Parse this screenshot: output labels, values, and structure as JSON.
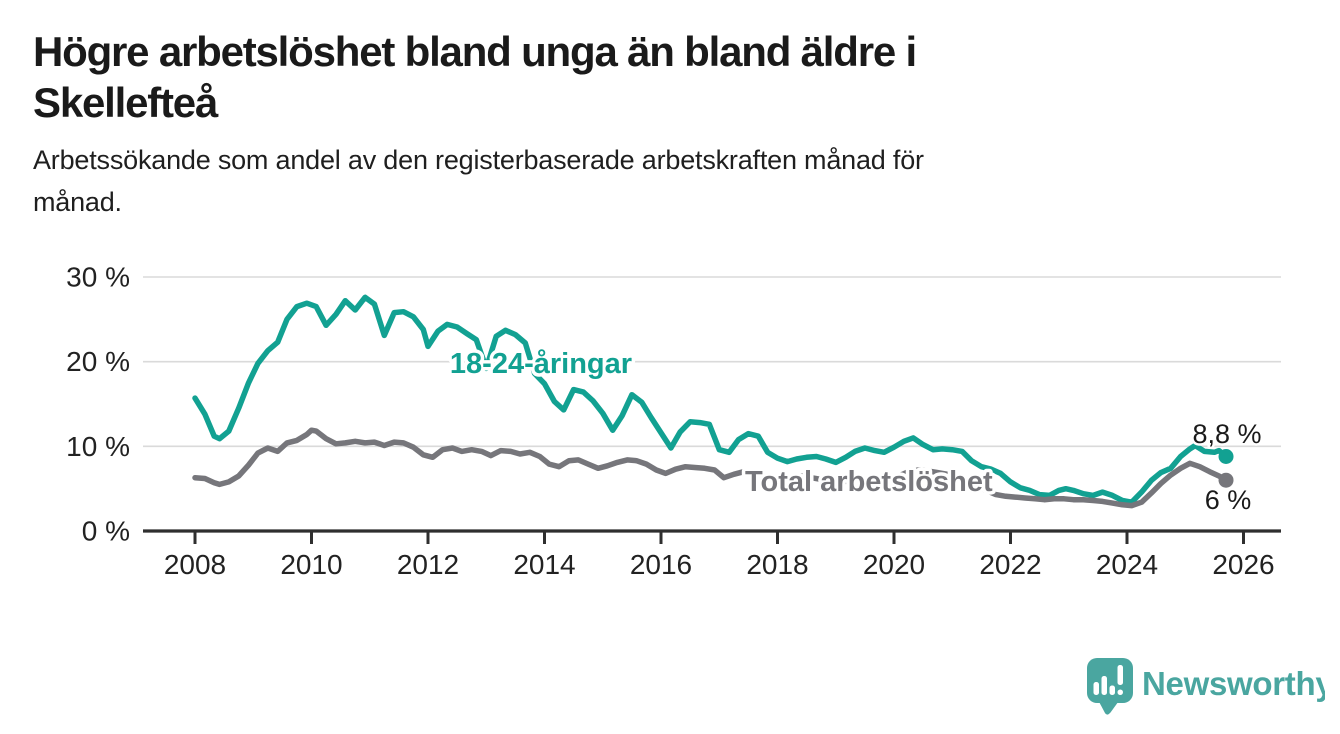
{
  "header": {
    "title_line1": "Högre arbetslöshet bland unga än bland äldre i",
    "title_line2": "Skellefteå",
    "subtitle_line1": "Arbetssökande som andel av den registerbaserade arbetskraften månad för",
    "subtitle_line2": "månad."
  },
  "footer": {
    "brand": "Newsworthy",
    "brand_color": "#4aa6a0",
    "logo_icon": "speech-bubble-bar-chart-icon"
  },
  "chart_data": {
    "type": "line",
    "title": "Högre arbetslöshet bland unga än bland äldre i Skellefteå",
    "subtitle": "Arbetssökande som andel av den registerbaserade arbetskraften månad för månad.",
    "unit": "%",
    "grid": "horizontal",
    "legend": "inline-labels",
    "colors": {
      "young": "#12a192",
      "total": "#76767b",
      "gridline": "#dadada",
      "axis": "#2f2f2f",
      "value_label": "#1a1a1a"
    },
    "x_axis": {
      "tick_labels": [
        "2008",
        "2010",
        "2012",
        "2014",
        "2016",
        "2018",
        "2020",
        "2022",
        "2024",
        "2026"
      ],
      "tick_years": [
        2008,
        2010,
        2012,
        2014,
        2016,
        2018,
        2020,
        2022,
        2024,
        2026
      ],
      "range": [
        2007.1,
        2026.65
      ]
    },
    "y_axis": {
      "tick_values": [
        0,
        10,
        20,
        30
      ],
      "tick_labels": [
        "0 %",
        "10 %",
        "20 %",
        "30 %"
      ],
      "range": [
        0,
        31.5
      ]
    },
    "series": [
      {
        "name": "18-24-åringar",
        "color": "#12a192",
        "end_label": "8,8 %",
        "end_value": 8.8,
        "points": [
          [
            2008.0,
            15.7
          ],
          [
            2008.17,
            13.8
          ],
          [
            2008.33,
            11.2
          ],
          [
            2008.42,
            10.9
          ],
          [
            2008.58,
            11.8
          ],
          [
            2008.75,
            14.5
          ],
          [
            2008.92,
            17.5
          ],
          [
            2009.08,
            19.8
          ],
          [
            2009.25,
            21.3
          ],
          [
            2009.42,
            22.3
          ],
          [
            2009.58,
            25.0
          ],
          [
            2009.75,
            26.5
          ],
          [
            2009.92,
            26.9
          ],
          [
            2010.08,
            26.5
          ],
          [
            2010.25,
            24.3
          ],
          [
            2010.42,
            25.6
          ],
          [
            2010.58,
            27.2
          ],
          [
            2010.75,
            26.1
          ],
          [
            2010.92,
            27.6
          ],
          [
            2011.08,
            26.8
          ],
          [
            2011.25,
            23.1
          ],
          [
            2011.42,
            25.8
          ],
          [
            2011.58,
            25.9
          ],
          [
            2011.75,
            25.3
          ],
          [
            2011.92,
            23.8
          ],
          [
            2012.0,
            21.8
          ],
          [
            2012.17,
            23.6
          ],
          [
            2012.33,
            24.4
          ],
          [
            2012.5,
            24.1
          ],
          [
            2012.67,
            23.3
          ],
          [
            2012.83,
            22.6
          ],
          [
            2013.0,
            19.2
          ],
          [
            2013.17,
            23.0
          ],
          [
            2013.33,
            23.7
          ],
          [
            2013.5,
            23.2
          ],
          [
            2013.67,
            22.2
          ],
          [
            2013.83,
            18.6
          ],
          [
            2014.0,
            17.4
          ],
          [
            2014.17,
            15.3
          ],
          [
            2014.33,
            14.3
          ],
          [
            2014.5,
            16.7
          ],
          [
            2014.67,
            16.4
          ],
          [
            2014.83,
            15.4
          ],
          [
            2015.0,
            13.9
          ],
          [
            2015.17,
            11.9
          ],
          [
            2015.33,
            13.6
          ],
          [
            2015.5,
            16.1
          ],
          [
            2015.67,
            15.2
          ],
          [
            2015.83,
            13.4
          ],
          [
            2016.0,
            11.6
          ],
          [
            2016.17,
            9.8
          ],
          [
            2016.33,
            11.7
          ],
          [
            2016.5,
            12.9
          ],
          [
            2016.67,
            12.8
          ],
          [
            2016.83,
            12.6
          ],
          [
            2017.0,
            9.6
          ],
          [
            2017.17,
            9.3
          ],
          [
            2017.33,
            10.8
          ],
          [
            2017.5,
            11.5
          ],
          [
            2017.67,
            11.2
          ],
          [
            2017.83,
            9.3
          ],
          [
            2018.0,
            8.6
          ],
          [
            2018.17,
            8.2
          ],
          [
            2018.33,
            8.5
          ],
          [
            2018.5,
            8.7
          ],
          [
            2018.67,
            8.8
          ],
          [
            2018.83,
            8.5
          ],
          [
            2019.0,
            8.1
          ],
          [
            2019.17,
            8.7
          ],
          [
            2019.33,
            9.4
          ],
          [
            2019.5,
            9.8
          ],
          [
            2019.67,
            9.5
          ],
          [
            2019.83,
            9.3
          ],
          [
            2020.0,
            9.9
          ],
          [
            2020.17,
            10.6
          ],
          [
            2020.33,
            11.0
          ],
          [
            2020.5,
            10.2
          ],
          [
            2020.67,
            9.6
          ],
          [
            2020.83,
            9.7
          ],
          [
            2021.0,
            9.6
          ],
          [
            2021.17,
            9.4
          ],
          [
            2021.33,
            8.3
          ],
          [
            2021.5,
            7.6
          ],
          [
            2021.67,
            7.3
          ],
          [
            2021.83,
            6.8
          ],
          [
            2022.0,
            5.8
          ],
          [
            2022.17,
            5.1
          ],
          [
            2022.33,
            4.8
          ],
          [
            2022.5,
            4.3
          ],
          [
            2022.67,
            4.2
          ],
          [
            2022.83,
            4.8
          ],
          [
            2022.95,
            5.0
          ],
          [
            2023.08,
            4.8
          ],
          [
            2023.25,
            4.4
          ],
          [
            2023.42,
            4.2
          ],
          [
            2023.58,
            4.6
          ],
          [
            2023.75,
            4.2
          ],
          [
            2023.92,
            3.6
          ],
          [
            2024.08,
            3.4
          ],
          [
            2024.25,
            4.6
          ],
          [
            2024.42,
            6.0
          ],
          [
            2024.58,
            6.9
          ],
          [
            2024.75,
            7.4
          ],
          [
            2024.92,
            8.8
          ],
          [
            2025.08,
            9.7
          ],
          [
            2025.17,
            10.1
          ],
          [
            2025.33,
            9.4
          ],
          [
            2025.5,
            9.3
          ],
          [
            2025.58,
            9.5
          ],
          [
            2025.7,
            8.8
          ]
        ]
      },
      {
        "name": "Total arbetslöshet",
        "color": "#76767b",
        "end_label": "6 %",
        "end_value": 6,
        "points": [
          [
            2008.0,
            6.3
          ],
          [
            2008.17,
            6.2
          ],
          [
            2008.33,
            5.7
          ],
          [
            2008.42,
            5.5
          ],
          [
            2008.58,
            5.8
          ],
          [
            2008.75,
            6.5
          ],
          [
            2008.92,
            7.8
          ],
          [
            2009.08,
            9.2
          ],
          [
            2009.25,
            9.8
          ],
          [
            2009.42,
            9.4
          ],
          [
            2009.58,
            10.4
          ],
          [
            2009.75,
            10.7
          ],
          [
            2009.92,
            11.4
          ],
          [
            2010.0,
            11.9
          ],
          [
            2010.08,
            11.8
          ],
          [
            2010.25,
            10.9
          ],
          [
            2010.42,
            10.3
          ],
          [
            2010.58,
            10.4
          ],
          [
            2010.75,
            10.6
          ],
          [
            2010.92,
            10.4
          ],
          [
            2011.08,
            10.5
          ],
          [
            2011.25,
            10.1
          ],
          [
            2011.42,
            10.5
          ],
          [
            2011.58,
            10.4
          ],
          [
            2011.75,
            9.9
          ],
          [
            2011.92,
            9.0
          ],
          [
            2012.08,
            8.7
          ],
          [
            2012.25,
            9.6
          ],
          [
            2012.42,
            9.8
          ],
          [
            2012.58,
            9.4
          ],
          [
            2012.75,
            9.6
          ],
          [
            2012.92,
            9.4
          ],
          [
            2013.08,
            8.9
          ],
          [
            2013.25,
            9.5
          ],
          [
            2013.42,
            9.4
          ],
          [
            2013.58,
            9.1
          ],
          [
            2013.75,
            9.3
          ],
          [
            2013.92,
            8.8
          ],
          [
            2014.08,
            7.9
          ],
          [
            2014.25,
            7.6
          ],
          [
            2014.42,
            8.3
          ],
          [
            2014.58,
            8.4
          ],
          [
            2014.75,
            7.9
          ],
          [
            2014.92,
            7.4
          ],
          [
            2015.08,
            7.7
          ],
          [
            2015.25,
            8.1
          ],
          [
            2015.42,
            8.4
          ],
          [
            2015.58,
            8.3
          ],
          [
            2015.75,
            7.9
          ],
          [
            2015.92,
            7.2
          ],
          [
            2016.08,
            6.8
          ],
          [
            2016.25,
            7.3
          ],
          [
            2016.42,
            7.6
          ],
          [
            2016.58,
            7.5
          ],
          [
            2016.75,
            7.4
          ],
          [
            2016.92,
            7.2
          ],
          [
            2017.08,
            6.3
          ],
          [
            2017.25,
            6.7
          ],
          [
            2017.42,
            7.0
          ],
          [
            2017.58,
            6.9
          ],
          [
            2017.75,
            6.3
          ],
          [
            2017.92,
            6.1
          ],
          [
            2018.08,
            6.2
          ],
          [
            2018.25,
            6.4
          ],
          [
            2018.42,
            6.5
          ],
          [
            2018.58,
            6.3
          ],
          [
            2018.75,
            6.1
          ],
          [
            2018.92,
            5.9
          ],
          [
            2019.08,
            5.8
          ],
          [
            2019.25,
            5.9
          ],
          [
            2019.42,
            6.1
          ],
          [
            2019.58,
            6.1
          ],
          [
            2019.75,
            6.0
          ],
          [
            2019.92,
            6.1
          ],
          [
            2020.08,
            6.5
          ],
          [
            2020.25,
            7.0
          ],
          [
            2020.42,
            7.2
          ],
          [
            2020.58,
            7.1
          ],
          [
            2020.75,
            6.9
          ],
          [
            2020.92,
            6.7
          ],
          [
            2021.08,
            6.4
          ],
          [
            2021.25,
            5.9
          ],
          [
            2021.42,
            5.3
          ],
          [
            2021.58,
            4.8
          ],
          [
            2021.75,
            4.3
          ],
          [
            2021.92,
            4.1
          ],
          [
            2022.08,
            4.0
          ],
          [
            2022.25,
            3.9
          ],
          [
            2022.42,
            3.8
          ],
          [
            2022.58,
            3.7
          ],
          [
            2022.75,
            3.8
          ],
          [
            2022.92,
            3.8
          ],
          [
            2023.08,
            3.7
          ],
          [
            2023.25,
            3.7
          ],
          [
            2023.42,
            3.6
          ],
          [
            2023.58,
            3.5
          ],
          [
            2023.75,
            3.3
          ],
          [
            2023.92,
            3.1
          ],
          [
            2024.08,
            3.0
          ],
          [
            2024.25,
            3.4
          ],
          [
            2024.42,
            4.5
          ],
          [
            2024.58,
            5.6
          ],
          [
            2024.75,
            6.6
          ],
          [
            2024.92,
            7.4
          ],
          [
            2025.08,
            8.0
          ],
          [
            2025.25,
            7.6
          ],
          [
            2025.42,
            7.0
          ],
          [
            2025.58,
            6.5
          ],
          [
            2025.7,
            6.0
          ]
        ]
      }
    ]
  }
}
